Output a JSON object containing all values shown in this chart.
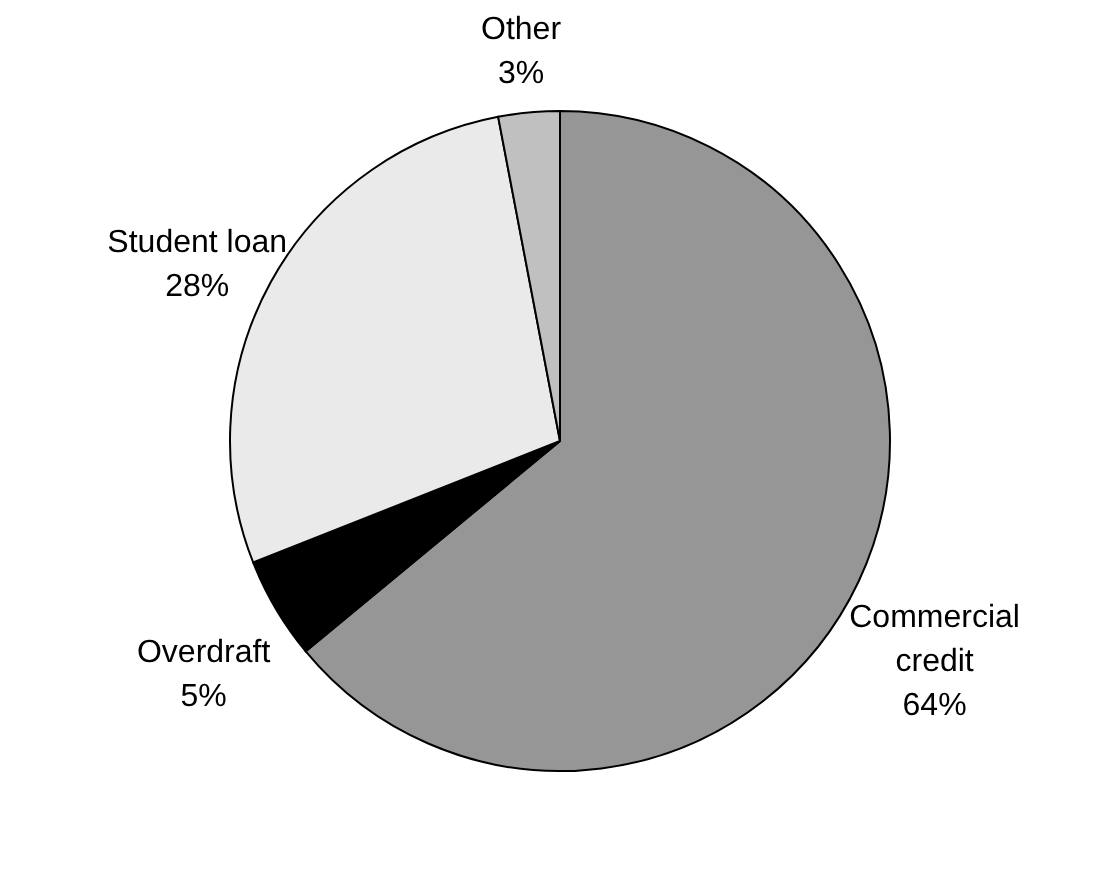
{
  "chart_data": {
    "type": "pie",
    "categories": [
      "Commercial credit",
      "Overdraft",
      "Student loan",
      "Other"
    ],
    "values": [
      64,
      5,
      28,
      3
    ],
    "colors": [
      "#969696",
      "#000000",
      "#eaeaea",
      "#c0c0c0"
    ],
    "value_labels": [
      "64%",
      "5%",
      "28%",
      "3%"
    ]
  }
}
